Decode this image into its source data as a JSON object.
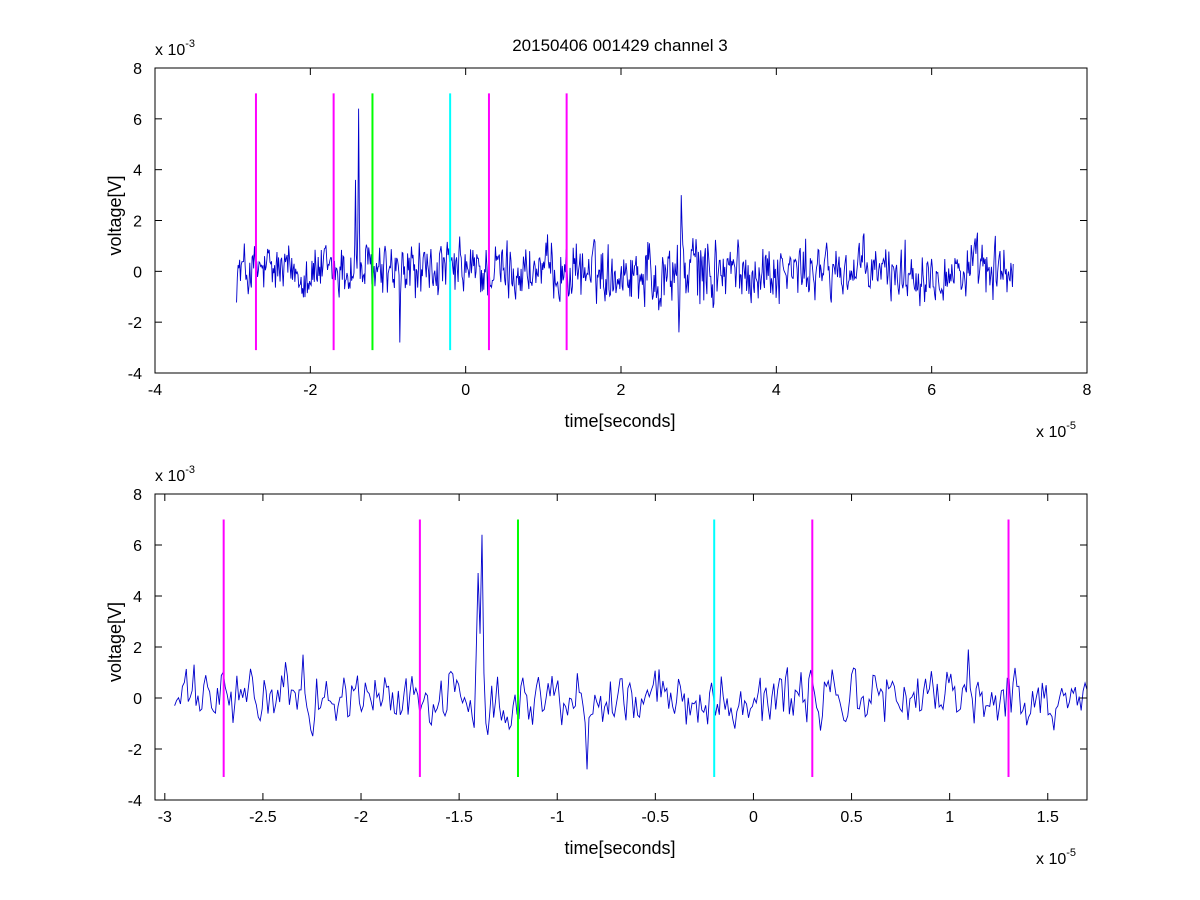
{
  "figure_title": "20150406 001429 channel 3",
  "chart_data": [
    {
      "type": "line",
      "title": "20150406 001429 channel 3",
      "xlabel": "time[seconds]",
      "ylabel": "voltage[V]",
      "x_multiplier_text": "x 10",
      "x_multiplier_exp": "-5",
      "y_multiplier_text": "x 10",
      "y_multiplier_exp": "-3",
      "xlim": [
        -4,
        8
      ],
      "ylim": [
        -4,
        8
      ],
      "xticks": [
        -4,
        -2,
        0,
        2,
        4,
        6,
        8
      ],
      "xtick_labels": [
        "-4",
        "-2",
        "0",
        "2",
        "4",
        "6",
        "8"
      ],
      "yticks": [
        -4,
        -2,
        0,
        2,
        4,
        6,
        8
      ],
      "ytick_labels": [
        "-4",
        "-2",
        "0",
        "2",
        "4",
        "6",
        "8"
      ],
      "grid": false,
      "series": [
        {
          "color": "#0000cc",
          "x_range": [
            -2.95,
            7.05
          ],
          "num_points": 1000,
          "values_summary": "noise around 0 with amplitude about ±1.5; spike to 6.4 near x=-1.38; burst up to 3.0 and down to -2.4 near x=2.8",
          "peaks": [
            {
              "x": -1.38,
              "y": 6.4
            },
            {
              "x": -1.42,
              "y": 3.6
            },
            {
              "x": 2.78,
              "y": 3.0
            },
            {
              "x": 2.75,
              "y": -2.4
            },
            {
              "x": -0.85,
              "y": -2.8
            }
          ]
        }
      ],
      "vlines": [
        {
          "x": -2.7,
          "ymin": -3.1,
          "ymax": 7,
          "color": "#ff00ff"
        },
        {
          "x": -1.7,
          "ymin": -3.1,
          "ymax": 7,
          "color": "#ff00ff"
        },
        {
          "x": -1.2,
          "ymin": -3.1,
          "ymax": 7,
          "color": "#00ff00"
        },
        {
          "x": -0.2,
          "ymin": -3.1,
          "ymax": 7,
          "color": "#00ffff"
        },
        {
          "x": 0.3,
          "ymin": -3.1,
          "ymax": 7,
          "color": "#ff00ff"
        },
        {
          "x": 1.3,
          "ymin": -3.1,
          "ymax": 7,
          "color": "#ff00ff"
        }
      ]
    },
    {
      "type": "line",
      "title": "",
      "xlabel": "time[seconds]",
      "ylabel": "voltage[V]",
      "x_multiplier_text": "x 10",
      "x_multiplier_exp": "-5",
      "y_multiplier_text": "x 10",
      "y_multiplier_exp": "-3",
      "xlim": [
        -3.05,
        1.7
      ],
      "ylim": [
        -4,
        8
      ],
      "xticks": [
        -3,
        -2.5,
        -2,
        -1.5,
        -1,
        -0.5,
        0,
        0.5,
        1,
        1.5
      ],
      "xtick_labels": [
        "-3",
        "-2.5",
        "-2",
        "-1.5",
        "-1",
        "-0.5",
        "0",
        "0.5",
        "1",
        "1.5"
      ],
      "yticks": [
        -4,
        -2,
        0,
        2,
        4,
        6,
        8
      ],
      "ytick_labels": [
        "-4",
        "-2",
        "0",
        "2",
        "4",
        "6",
        "8"
      ],
      "grid": false,
      "series": [
        {
          "color": "#0000cc",
          "x_range": [
            -2.95,
            1.7
          ],
          "num_points": 470,
          "values_summary": "zoomed view of the same signal: noise around 0 with amplitude about ±1.5; spike to 6.4 near x=-1.38",
          "peaks": [
            {
              "x": -1.38,
              "y": 6.4
            },
            {
              "x": -1.4,
              "y": 4.9
            },
            {
              "x": -0.85,
              "y": -2.8
            },
            {
              "x": 1.1,
              "y": 1.9
            },
            {
              "x": -2.3,
              "y": 1.7
            }
          ]
        }
      ],
      "vlines": [
        {
          "x": -2.7,
          "ymin": -3.1,
          "ymax": 7,
          "color": "#ff00ff"
        },
        {
          "x": -1.7,
          "ymin": -3.1,
          "ymax": 7,
          "color": "#ff00ff"
        },
        {
          "x": -1.2,
          "ymin": -3.1,
          "ymax": 7,
          "color": "#00ff00"
        },
        {
          "x": -0.2,
          "ymin": -3.1,
          "ymax": 7,
          "color": "#00ffff"
        },
        {
          "x": 0.3,
          "ymin": -3.1,
          "ymax": 7,
          "color": "#ff00ff"
        },
        {
          "x": 1.3,
          "ymin": -3.1,
          "ymax": 7,
          "color": "#ff00ff"
        }
      ]
    }
  ]
}
